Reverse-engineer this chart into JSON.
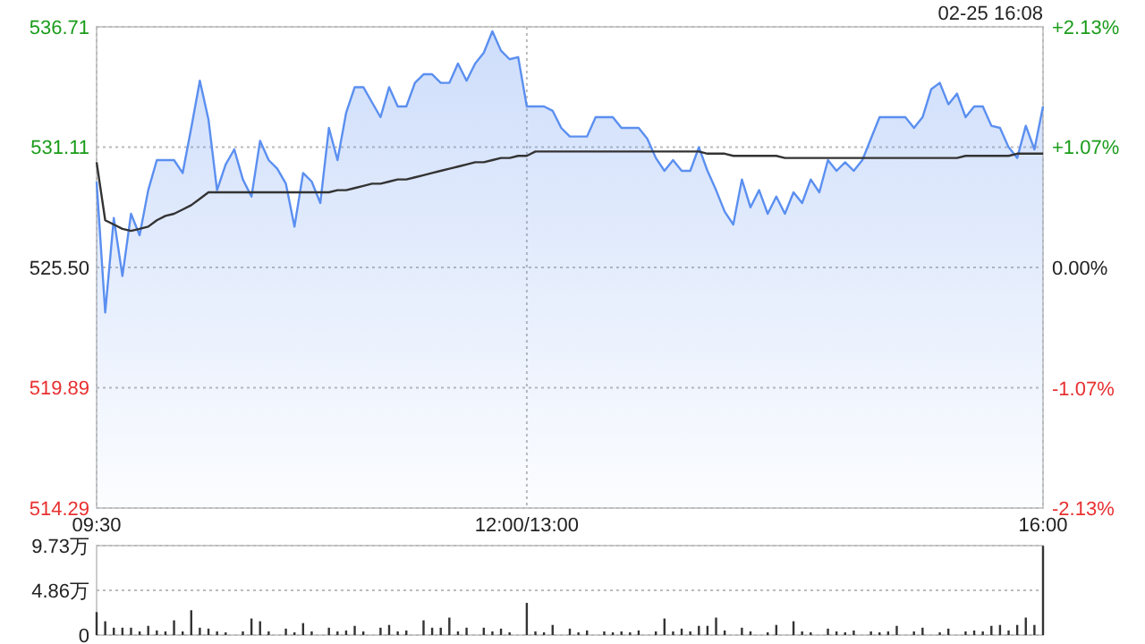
{
  "chart_data": [
    {
      "type": "area",
      "subtitle": "02-25 16:08",
      "categories": [
        "09:30",
        null,
        null,
        null,
        null,
        null,
        null,
        null,
        null,
        null,
        null,
        null,
        null,
        null,
        null,
        null,
        null,
        null,
        null,
        null,
        null,
        null,
        null,
        null,
        null,
        null,
        null,
        null,
        null,
        null,
        null,
        null,
        null,
        null,
        null,
        null,
        null,
        null,
        null,
        null,
        null,
        null,
        null,
        null,
        null,
        null,
        null,
        null,
        null,
        null,
        "12:00/13:00",
        null,
        null,
        null,
        null,
        null,
        null,
        null,
        null,
        null,
        null,
        null,
        null,
        null,
        null,
        null,
        null,
        null,
        null,
        null,
        null,
        null,
        null,
        null,
        null,
        null,
        null,
        null,
        null,
        null,
        null,
        null,
        null,
        null,
        null,
        null,
        null,
        null,
        null,
        null,
        null,
        null,
        null,
        null,
        null,
        null,
        null,
        null,
        null,
        null,
        null,
        null,
        null,
        null,
        null,
        null,
        null,
        null,
        null,
        null,
        "16:00"
      ],
      "ylim": [
        514.29,
        536.71
      ],
      "yticks": [
        514.29,
        519.89,
        {
          "value": 525.5,
          "label": "525.50"
        },
        531.11,
        536.71
      ],
      "y2lim": [
        -2.13,
        2.13
      ],
      "y2ticks": [
        {
          "value": -2.13,
          "label": "-2.13%"
        },
        {
          "value": -1.07,
          "label": "-1.07%"
        },
        {
          "value": 0,
          "label": "0.00%"
        },
        {
          "value": 1.07,
          "label": "+1.07%"
        },
        {
          "value": 2.13,
          "label": "+2.13%"
        }
      ],
      "grid": true,
      "series": [
        {
          "color": "#5b8ff0",
          "values": [
            529.5,
            523.4,
            527.8,
            525.1,
            528.0,
            527.0,
            529.1,
            530.5,
            530.5,
            530.5,
            529.9,
            532.0,
            534.2,
            532.4,
            529.1,
            530.3,
            531.0,
            529.6,
            528.8,
            531.4,
            530.5,
            530.1,
            529.4,
            527.4,
            529.9,
            529.5,
            528.5,
            532.0,
            530.5,
            532.7,
            533.9,
            533.9,
            533.2,
            532.5,
            533.9,
            533.0,
            533.0,
            534.1,
            534.5,
            534.5,
            534.1,
            534.1,
            535.0,
            534.2,
            535.0,
            535.5,
            536.5,
            535.6,
            535.2,
            535.3,
            533.0,
            533.0,
            533.0,
            532.8,
            532.0,
            531.6,
            531.6,
            531.6,
            532.5,
            532.5,
            532.5,
            532.0,
            532.0,
            532.0,
            531.5,
            530.6,
            530.0,
            530.5,
            530.0,
            530.0,
            531.1,
            530.0,
            529.1,
            528.1,
            527.5,
            529.6,
            528.3,
            529.1,
            528.0,
            528.8,
            528.0,
            529.0,
            528.5,
            529.6,
            529.0,
            530.5,
            530.0,
            530.4,
            530.0,
            530.5,
            531.5,
            532.5,
            532.5,
            532.5,
            532.5,
            532.0,
            532.5,
            533.8,
            534.1,
            533.1,
            533.6,
            532.5,
            533.0,
            533.0,
            532.1,
            532.0,
            531.1,
            530.6,
            532.1,
            531.0,
            533.0
          ]
        },
        {
          "type": "line",
          "color": "#333333",
          "values": [
            530.4,
            527.7,
            527.5,
            527.3,
            527.2,
            527.3,
            527.4,
            527.7,
            527.9,
            528.0,
            528.2,
            528.4,
            528.7,
            529.0,
            529.0,
            529.0,
            529.0,
            529.0,
            529.0,
            529.0,
            529.0,
            529.0,
            529.0,
            529.0,
            529.0,
            529.0,
            529.0,
            529.0,
            529.1,
            529.1,
            529.2,
            529.3,
            529.4,
            529.4,
            529.5,
            529.6,
            529.6,
            529.7,
            529.8,
            529.9,
            530.0,
            530.1,
            530.2,
            530.3,
            530.4,
            530.4,
            530.5,
            530.6,
            530.6,
            530.7,
            530.7,
            530.9,
            530.9,
            530.9,
            530.9,
            530.9,
            530.9,
            530.9,
            530.9,
            530.9,
            530.9,
            530.9,
            530.9,
            530.9,
            530.9,
            530.9,
            530.9,
            530.9,
            530.9,
            530.9,
            530.9,
            530.8,
            530.8,
            530.8,
            530.7,
            530.7,
            530.7,
            530.7,
            530.7,
            530.7,
            530.6,
            530.6,
            530.6,
            530.6,
            530.6,
            530.6,
            530.6,
            530.6,
            530.6,
            530.6,
            530.6,
            530.6,
            530.6,
            530.6,
            530.6,
            530.6,
            530.6,
            530.6,
            530.6,
            530.6,
            530.6,
            530.7,
            530.7,
            530.7,
            530.7,
            530.7,
            530.7,
            530.8,
            530.8,
            530.8,
            530.8
          ]
        }
      ]
    },
    {
      "type": "bar",
      "tick_labels": "y",
      "color": "#333333",
      "categories": [
        null,
        null,
        null,
        null,
        null,
        null,
        null,
        null,
        null,
        null,
        null,
        null,
        null,
        null,
        null,
        null,
        null,
        null,
        null,
        null,
        null,
        null,
        null,
        null,
        null,
        null,
        null,
        null,
        null,
        null,
        null,
        null,
        null,
        null,
        null,
        null,
        null,
        null,
        null,
        null,
        null,
        null,
        null,
        null,
        null,
        null,
        null,
        null,
        null,
        null,
        null,
        null,
        null,
        null,
        null,
        null,
        null,
        null,
        null,
        null,
        null,
        null,
        null,
        null,
        null,
        null,
        null,
        null,
        null,
        null,
        null,
        null,
        null,
        null,
        null,
        null,
        null,
        null,
        null,
        null,
        null,
        null,
        null,
        null,
        null,
        null,
        null,
        null,
        null,
        null,
        null,
        null,
        null,
        null,
        null,
        null,
        null,
        null,
        null,
        null,
        null,
        null,
        null,
        null,
        null,
        null,
        null,
        null,
        null,
        null,
        null
      ],
      "ylim": [
        0,
        9.73
      ],
      "yticks": [
        0,
        {
          "value": 4.86,
          "label": "4.86万"
        },
        {
          "value": 9.73,
          "label": "9.73万"
        }
      ],
      "grid": "y",
      "values": [
        2.5,
        1.5,
        0.8,
        0.8,
        0.8,
        0.4,
        1.0,
        0.5,
        0.4,
        1.6,
        0.4,
        2.7,
        0.8,
        0.7,
        0.4,
        0.3,
        null,
        0.4,
        1.8,
        1.5,
        0.4,
        null,
        0.7,
        0.3,
        1.3,
        0.4,
        null,
        0.8,
        0.4,
        0.5,
        1.0,
        0.4,
        null,
        0.8,
        1.1,
        0.4,
        0.5,
        null,
        1.6,
        0.8,
        0.8,
        1.9,
        0.4,
        0.8,
        null,
        0.8,
        0.4,
        0.7,
        0.3,
        null,
        3.5,
        0.4,
        0.3,
        1.1,
        null,
        0.7,
        0.3,
        0.5,
        null,
        0.4,
        0.3,
        0.4,
        0.3,
        0.5,
        null,
        0.4,
        1.8,
        0.4,
        0.7,
        0.4,
        1.0,
        1.0,
        1.9,
        0.5,
        null,
        0.8,
        0.4,
        null,
        0.3,
        1.1,
        null,
        1.5,
        0.4,
        0.3,
        null,
        0.7,
        0.4,
        0.3,
        0.5,
        null,
        0.4,
        0.3,
        0.4,
        1.0,
        null,
        0.4,
        0.8,
        null,
        0.3,
        0.7,
        null,
        0.4,
        0.5,
        0.4,
        1.0,
        1.1,
        0.5,
        1.1,
        1.9,
        1.1,
        9.7
      ]
    }
  ]
}
